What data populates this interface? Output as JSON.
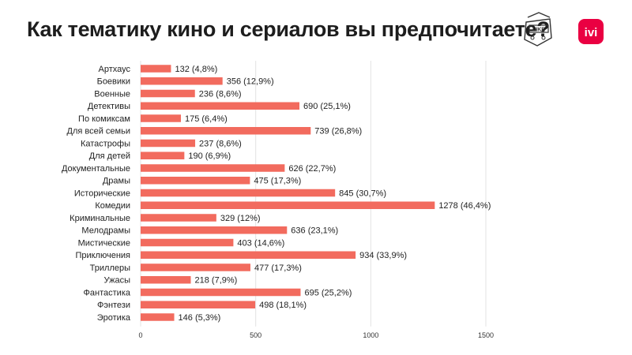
{
  "header": {
    "title": "Как тематику кино и сериалов вы предпочитаете?"
  },
  "logos": {
    "left_logo_text": "LIKE",
    "ivi_text": "ivi",
    "ivi_color": "#ea0042"
  },
  "chart_data": {
    "type": "bar",
    "orientation": "horizontal",
    "title": "Как тематику кино и сериалов вы предпочитаете?",
    "categories": [
      "Артхаус",
      "Боевики",
      "Военные",
      "Детективы",
      "По комиксам",
      "Для всей семьи",
      "Катастрофы",
      "Для детей",
      "Документальные",
      "Драмы",
      "Исторические",
      "Комедии",
      "Криминальные",
      "Мелодрамы",
      "Мистические",
      "Приключения",
      "Триллеры",
      "Ужасы",
      "Фантастика",
      "Фэнтези",
      "Эротика"
    ],
    "values": [
      132,
      356,
      236,
      690,
      175,
      739,
      237,
      190,
      626,
      475,
      845,
      1278,
      329,
      636,
      403,
      934,
      477,
      218,
      695,
      498,
      146
    ],
    "data_labels": [
      "132 (4,8%)",
      "356 (12,9%)",
      "236 (8,6%)",
      "690 (25,1%)",
      "175 (6,4%)",
      "739 (26,8%)",
      "237 (8,6%)",
      "190 (6,9%)",
      "626 (22,7%)",
      "475 (17,3%)",
      "845 (30,7%)",
      "1278 (46,4%)",
      "329 (12%)",
      "636 (23,1%)",
      "403 (14,6%)",
      "934 (33,9%)",
      "477 (17,3%)",
      "218 (7,9%)",
      "695 (25,2%)",
      "498 (18,1%)",
      "146 (5,3%)"
    ],
    "xlim": [
      0,
      1500
    ],
    "x_ticks": [
      "0",
      "500",
      "1000",
      "1500"
    ],
    "x_tick_values": [
      0,
      500,
      1000,
      1500
    ],
    "grid": true,
    "bar_color": "#f26b5e",
    "grid_color": "#e3e3e3"
  }
}
